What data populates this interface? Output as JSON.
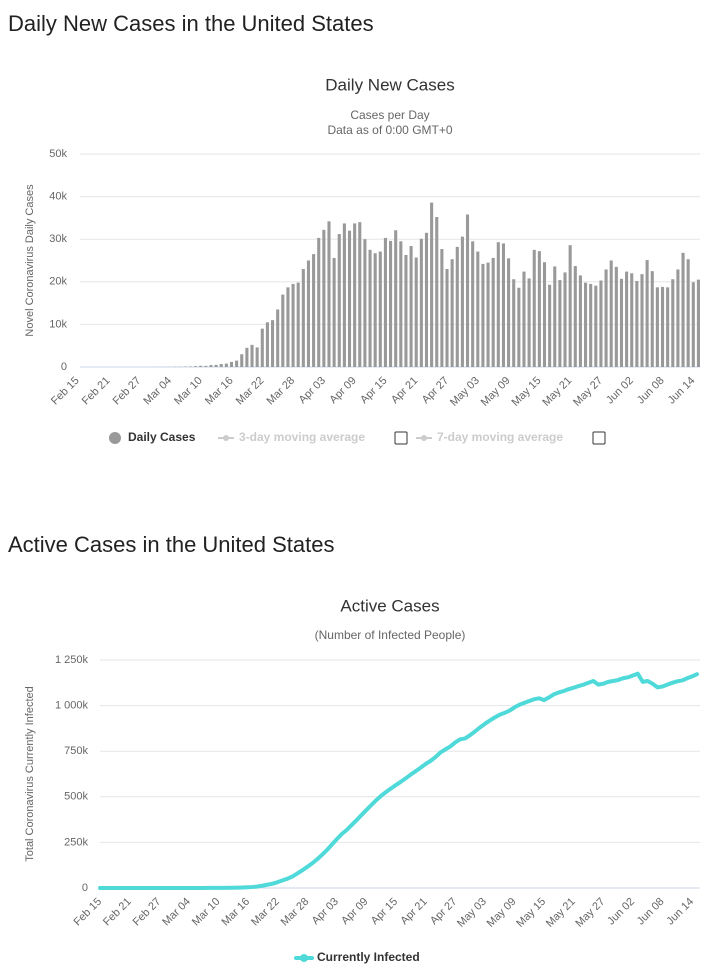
{
  "headings": [
    "Daily New Cases in the United States",
    "Active Cases in the United States"
  ],
  "chart_data": [
    {
      "type": "bar",
      "title": "Daily New Cases",
      "subtitle": [
        "Cases per Day",
        "Data as of 0:00 GMT+0"
      ],
      "y_axis_label": "Novel Coronavirus Daily Cases",
      "categories": [
        "Feb 15",
        null,
        null,
        null,
        null,
        null,
        "Feb 21",
        null,
        null,
        null,
        null,
        null,
        "Feb 27",
        null,
        null,
        null,
        null,
        null,
        "Mar 04",
        null,
        null,
        null,
        null,
        null,
        "Mar 10",
        null,
        null,
        null,
        null,
        null,
        "Mar 16",
        null,
        null,
        null,
        null,
        null,
        "Mar 22",
        null,
        null,
        null,
        null,
        null,
        "Mar 28",
        null,
        null,
        null,
        null,
        null,
        "Apr 03",
        null,
        null,
        null,
        null,
        null,
        "Apr 09",
        null,
        null,
        null,
        null,
        null,
        "Apr 15",
        null,
        null,
        null,
        null,
        null,
        "Apr 21",
        null,
        null,
        null,
        null,
        null,
        "Apr 27",
        null,
        null,
        null,
        null,
        null,
        "May 03",
        null,
        null,
        null,
        null,
        null,
        "May 09",
        null,
        null,
        null,
        null,
        null,
        "May 15",
        null,
        null,
        null,
        null,
        null,
        "May 21",
        null,
        null,
        null,
        null,
        null,
        "May 27",
        null,
        null,
        null,
        null,
        null,
        "Jun 02",
        null,
        null,
        null,
        null,
        null,
        "Jun 08",
        null,
        null,
        null,
        null,
        null,
        "Jun 14",
        null
      ],
      "series": [
        {
          "name": "Daily Cases",
          "color": "#999999",
          "values": [
            0,
            0,
            0,
            0,
            0,
            0,
            0,
            0,
            0,
            0,
            0,
            0,
            1,
            0,
            2,
            20,
            20,
            30,
            30,
            70,
            70,
            90,
            120,
            190,
            290,
            270,
            450,
            500,
            700,
            800,
            1200,
            1500,
            3000,
            4500,
            5200,
            4600,
            9000,
            10500,
            11000,
            13500,
            17000,
            18700,
            19500,
            19800,
            23000,
            25000,
            26500,
            30300,
            32200,
            34200,
            25600,
            31200,
            33700,
            32000,
            33700,
            34000,
            30000,
            27500,
            26700,
            27100,
            30300,
            29600,
            32100,
            29500,
            26300,
            28400,
            25700,
            30100,
            31500,
            38600,
            35200,
            27700,
            23000,
            25300,
            28200,
            30600,
            35800,
            29500,
            27100,
            24200,
            24500,
            25600,
            29300,
            29000,
            25500,
            20600,
            18600,
            22400,
            20800,
            27500,
            27200,
            24600,
            19300,
            23600,
            20400,
            22200,
            28600,
            23700,
            21500,
            19800,
            19500,
            19100,
            20300,
            22900,
            25000,
            23500,
            20700,
            22400,
            22000,
            20200,
            21800,
            25100,
            22500,
            18700,
            18800,
            18700,
            20600,
            22900,
            26800,
            25300,
            19900,
            20500
          ]
        }
      ],
      "hidden_series": [
        {
          "name": "3-day moving average",
          "color": "#cccccc"
        },
        {
          "name": "7-day moving average",
          "color": "#cccccc"
        }
      ],
      "ylim": [
        0,
        50000
      ],
      "yticks": [
        0,
        {
          "value": 10000,
          "label": "10k"
        },
        {
          "value": 20000,
          "label": "20k"
        },
        {
          "value": 30000,
          "label": "30k"
        },
        {
          "value": 40000,
          "label": "40k"
        },
        {
          "value": 50000,
          "label": "50k"
        }
      ],
      "grid": true
    },
    {
      "type": "line",
      "title": "Active Cases",
      "subtitle": [
        "(Number of Infected People)"
      ],
      "y_axis_label": "Total Coronavirus Currently Infected",
      "categories": [
        "Feb 15",
        null,
        null,
        null,
        null,
        null,
        "Feb 21",
        null,
        null,
        null,
        null,
        null,
        "Feb 27",
        null,
        null,
        null,
        null,
        null,
        "Mar 04",
        null,
        null,
        null,
        null,
        null,
        "Mar 10",
        null,
        null,
        null,
        null,
        null,
        "Mar 16",
        null,
        null,
        null,
        null,
        null,
        "Mar 22",
        null,
        null,
        null,
        null,
        null,
        "Mar 28",
        null,
        null,
        null,
        null,
        null,
        "Apr 03",
        null,
        null,
        null,
        null,
        null,
        "Apr 09",
        null,
        null,
        null,
        null,
        null,
        "Apr 15",
        null,
        null,
        null,
        null,
        null,
        "Apr 21",
        null,
        null,
        null,
        null,
        null,
        "Apr 27",
        null,
        null,
        null,
        null,
        null,
        "May 03",
        null,
        null,
        null,
        null,
        null,
        "May 09",
        null,
        null,
        null,
        null,
        null,
        "May 15",
        null,
        null,
        null,
        null,
        null,
        "May 21",
        null,
        null,
        null,
        null,
        null,
        "May 27",
        null,
        null,
        null,
        null,
        null,
        "Jun 02",
        null,
        null,
        null,
        null,
        null,
        "Jun 08",
        null,
        null,
        null,
        null,
        null,
        "Jun 14",
        null
      ],
      "series": [
        {
          "name": "Currently Infected",
          "color": "#4fd9d9",
          "values": [
            13,
            13,
            13,
            13,
            13,
            13,
            13,
            13,
            24,
            24,
            40,
            40,
            45,
            50,
            55,
            60,
            80,
            100,
            130,
            180,
            230,
            350,
            450,
            550,
            700,
            950,
            1300,
            1700,
            2200,
            3000,
            4200,
            5800,
            8500,
            13000,
            18500,
            23500,
            32000,
            42000,
            51000,
            63000,
            80000,
            97000,
            116000,
            135000,
            157000,
            182000,
            208000,
            238000,
            268000,
            296000,
            318000,
            345000,
            372000,
            400000,
            428000,
            455000,
            482000,
            506000,
            527000,
            546000,
            565000,
            583000,
            602000,
            622000,
            641000,
            660000,
            680000,
            697000,
            718000,
            743000,
            760000,
            776000,
            798000,
            815000,
            820000,
            838000,
            858000,
            880000,
            900000,
            918000,
            935000,
            950000,
            960000,
            972000,
            990000,
            1005000,
            1015000,
            1025000,
            1035000,
            1040000,
            1030000,
            1045000,
            1062000,
            1072000,
            1080000,
            1090000,
            1098000,
            1107000,
            1115000,
            1125000,
            1135000,
            1115000,
            1120000,
            1130000,
            1135000,
            1140000,
            1150000,
            1155000,
            1165000,
            1175000,
            1130000,
            1135000,
            1120000,
            1100000,
            1105000,
            1115000,
            1125000,
            1133000,
            1138000,
            1150000,
            1160000,
            1172000
          ]
        }
      ],
      "ylim": [
        0,
        1250000
      ],
      "yticks": [
        0,
        {
          "value": 250000,
          "label": "250k"
        },
        {
          "value": 500000,
          "label": "500k"
        },
        {
          "value": 750000,
          "label": "750k"
        },
        {
          "value": 1000000,
          "label": "1 000k"
        },
        {
          "value": 1250000,
          "label": "1 250k"
        }
      ],
      "grid": true
    }
  ]
}
